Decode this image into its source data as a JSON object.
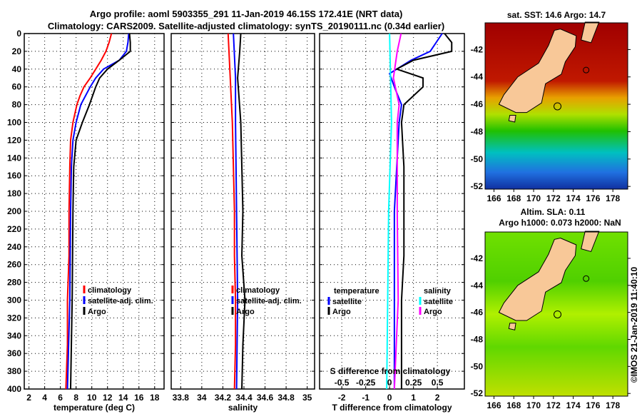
{
  "title_line1": "Argo profile: aoml 5903355_291 11-Jan-2019 46.15S 172.41E (NRT data)",
  "title_line2": "Climatology: CARS2009. Satellite-adjusted climatology: synTS_20190111.nc (0.34d earlier)",
  "colors": {
    "clim": "#ff0000",
    "sat": "#0000ff",
    "argo": "#000000",
    "s_sat": "#00ffff",
    "s_argo": "#ff00ff"
  },
  "chart_data": [
    {
      "type": "line",
      "xlabel": "temperature (deg C)",
      "ylabel": "",
      "ylim": [
        400,
        0
      ],
      "xlim": [
        1.4,
        19.2
      ],
      "xticks": [
        2,
        4,
        6,
        8,
        10,
        12,
        14,
        16,
        18
      ],
      "yticks": [
        0,
        20,
        40,
        60,
        80,
        100,
        120,
        140,
        160,
        180,
        200,
        220,
        240,
        260,
        280,
        300,
        320,
        340,
        360,
        380,
        400
      ],
      "legend": [
        "climatology",
        "satellite-adj. clim.",
        "Argo"
      ],
      "series": [
        {
          "name": "climatology",
          "color": "clim",
          "depth": [
            0,
            10,
            20,
            30,
            40,
            50,
            60,
            70,
            80,
            100,
            120,
            150,
            200,
            250,
            300,
            350,
            400
          ],
          "values": [
            12.5,
            12.2,
            11.8,
            11.2,
            10.5,
            9.8,
            9.0,
            8.5,
            8.1,
            7.6,
            7.3,
            7.2,
            7.1,
            7.1,
            6.9,
            6.9,
            6.7
          ]
        },
        {
          "name": "satellite-adj. clim.",
          "color": "sat",
          "depth": [
            0,
            10,
            20,
            30,
            40,
            50,
            60,
            80,
            100,
            120,
            150,
            200,
            300,
            400
          ],
          "values": [
            14.7,
            14.6,
            14.4,
            13.5,
            11.5,
            10.5,
            9.8,
            8.6,
            8.0,
            7.6,
            7.4,
            7.3,
            7.2,
            6.9
          ]
        },
        {
          "name": "Argo",
          "color": "argo",
          "depth": [
            0,
            10,
            20,
            30,
            40,
            50,
            60,
            80,
            100,
            120,
            150,
            200,
            300,
            400
          ],
          "values": [
            14.8,
            14.9,
            14.9,
            13.5,
            12.0,
            11.0,
            10.5,
            9.7,
            8.8,
            8.0,
            7.7,
            7.6,
            7.5,
            7.3
          ]
        }
      ]
    },
    {
      "type": "line",
      "xlabel": "salinity",
      "ylim": [
        400,
        0
      ],
      "xlim": [
        33.71,
        35.07
      ],
      "xticks": [
        "33.8",
        "34",
        "34.2",
        "34.4",
        "34.6",
        "34.8",
        "35"
      ],
      "legend": [
        "climatology",
        "satellite-adj. clim.",
        "Argo"
      ],
      "series": [
        {
          "name": "climatology",
          "color": "clim",
          "depth": [
            0,
            50,
            100,
            150,
            200,
            250,
            300,
            350,
            400
          ],
          "values": [
            34.25,
            34.27,
            34.29,
            34.3,
            34.31,
            34.31,
            34.32,
            34.32,
            34.31
          ]
        },
        {
          "name": "satellite-adj. clim.",
          "color": "sat",
          "depth": [
            0,
            50,
            100,
            200,
            300,
            400
          ],
          "values": [
            34.3,
            34.32,
            34.32,
            34.33,
            34.34,
            34.33
          ]
        },
        {
          "name": "Argo",
          "color": "argo",
          "depth": [
            0,
            20,
            50,
            100,
            150,
            200,
            250,
            300,
            350,
            400
          ],
          "values": [
            34.37,
            34.36,
            34.34,
            34.37,
            34.38,
            34.39,
            34.38,
            34.41,
            34.39,
            34.38
          ]
        }
      ]
    },
    {
      "type": "line",
      "xlabel": "T difference from climatology",
      "xlabel2": "S difference from climatology",
      "ylim": [
        400,
        0
      ],
      "xlim": [
        -2.93,
        3.13
      ],
      "xticks": [
        "-2",
        "-1",
        "0",
        "1",
        "2"
      ],
      "sticks": [
        "-0.5",
        "-0.25",
        "0",
        "0.25",
        "0.5"
      ],
      "legend_t_title": "temperature",
      "legend_s_title": "salinity",
      "legend_t": [
        "satellite",
        "Argo"
      ],
      "legend_s": [
        "satellite",
        "Argo"
      ],
      "series": [
        {
          "name": "T satellite",
          "color": "sat",
          "scale": "T",
          "depth": [
            0,
            20,
            30,
            45,
            60,
            80,
            100,
            150,
            200,
            300,
            400
          ],
          "values": [
            2.2,
            1.7,
            0.9,
            0.0,
            0.2,
            0.5,
            0.4,
            0.3,
            0.2,
            0.2,
            0.2
          ]
        },
        {
          "name": "T Argo",
          "color": "argo",
          "scale": "T",
          "depth": [
            0,
            10,
            20,
            30,
            40,
            50,
            60,
            80,
            100,
            150,
            200,
            250,
            300,
            400
          ],
          "values": [
            2.3,
            2.6,
            2.6,
            1.0,
            0.3,
            1.4,
            1.4,
            0.6,
            0.5,
            0.6,
            0.6,
            0.6,
            0.5,
            0.5
          ]
        },
        {
          "name": "S satellite",
          "color": "s_sat",
          "scale": "S",
          "depth": [
            0,
            100,
            200,
            300,
            400
          ],
          "values": [
            0.0,
            0.02,
            -0.01,
            -0.02,
            -0.03
          ]
        },
        {
          "name": "S Argo",
          "color": "s_argo",
          "scale": "S",
          "depth": [
            0,
            20,
            50,
            80,
            100,
            200,
            300,
            400
          ],
          "values": [
            0.12,
            0.08,
            0.04,
            0.1,
            0.08,
            0.08,
            0.09,
            0.05
          ]
        }
      ]
    }
  ],
  "maps": {
    "sst_title": "sat. SST: 14.6 Argo: 14.7",
    "sla_title1": "Altim. SLA: 0.11",
    "sla_title2": "Argo h1000: 0.073 h2000: NaN",
    "lon_ticks": [
      "166",
      "168",
      "170",
      "172",
      "174",
      "176",
      "178"
    ],
    "lat_ticks": [
      "-42",
      "-44",
      "-46",
      "-48",
      "-50",
      "-52"
    ],
    "credit": "©IMOS 21-Jan-2019 11:40:10"
  }
}
